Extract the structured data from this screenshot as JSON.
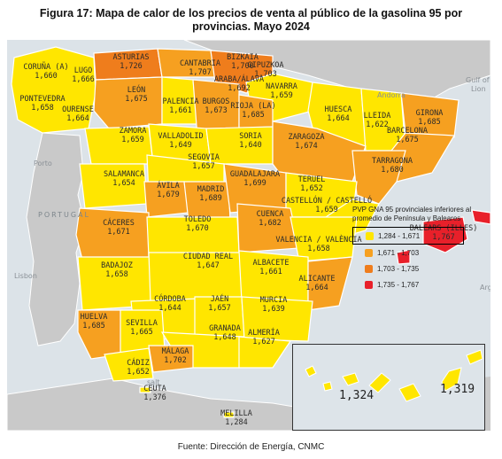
{
  "title": "Figura 17: Mapa de calor de los precios de venta al público de la gasolina 95 por provincias. Mayo 2024",
  "source": "Fuente: Dirección de Energía, CNMC",
  "colors": {
    "sea": "#dce3e8",
    "land": "#c4c4c4",
    "bin1": "#ffe600",
    "bin2": "#f6a020",
    "bin3": "#ef7d1c",
    "bin4": "#e8202a"
  },
  "legend": {
    "title": "PVP GNA 95 provinciales inferiores al promedio de Península y Baleares",
    "items": [
      {
        "label": "1,284 - 1,671",
        "color": "#ffe600"
      },
      {
        "label": "1,671 - 1,703",
        "color": "#f6a020"
      },
      {
        "label": "1,703 - 1,735",
        "color": "#ef7d1c"
      },
      {
        "label": "1,735 - 1,767",
        "color": "#e8202a"
      }
    ]
  },
  "places": {
    "portugal": "PORTUGAL",
    "porto": "Porto",
    "lisbon": "Lisbon",
    "andorra": "Andorra",
    "gulf": "Gulf of",
    "lion": "Lion",
    "argel": "Argel",
    "salt": "salt"
  },
  "provinces": [
    {
      "name": "CORUÑA (A)",
      "value": "1,660"
    },
    {
      "name": "LUGO",
      "value": "1,666"
    },
    {
      "name": "PONTEVEDRA",
      "value": "1,658"
    },
    {
      "name": "OURENSE",
      "value": "1,664"
    },
    {
      "name": "ASTURIAS",
      "value": "1,726"
    },
    {
      "name": "CANTABRIA",
      "value": "1,707"
    },
    {
      "name": "BIZKAIA",
      "value": "1,700"
    },
    {
      "name": "GIPUZKOA",
      "value": "1,703"
    },
    {
      "name": "ARABA/ÁLAVA",
      "value": "1,692"
    },
    {
      "name": "NAVARRA",
      "value": "1,659"
    },
    {
      "name": "LEÓN",
      "value": "1,675"
    },
    {
      "name": "PALENCIA",
      "value": "1,661"
    },
    {
      "name": "BURGOS",
      "value": "1,673"
    },
    {
      "name": "RIOJA (LA)",
      "value": "1,685"
    },
    {
      "name": "HUESCA",
      "value": "1,664"
    },
    {
      "name": "LLEIDA",
      "value": "1,622"
    },
    {
      "name": "GIRONA",
      "value": "1,685"
    },
    {
      "name": "BARCELONA",
      "value": "1,675"
    },
    {
      "name": "ZAMORA",
      "value": "1,659"
    },
    {
      "name": "VALLADOLID",
      "value": "1,649"
    },
    {
      "name": "SORIA",
      "value": "1,640"
    },
    {
      "name": "ZARAGOZA",
      "value": "1,674"
    },
    {
      "name": "TARRAGONA",
      "value": "1,680"
    },
    {
      "name": "SALAMANCA",
      "value": "1,654"
    },
    {
      "name": "SEGOVIA",
      "value": "1,657"
    },
    {
      "name": "ÁVILA",
      "value": "1,679"
    },
    {
      "name": "MADRID",
      "value": "1,689"
    },
    {
      "name": "GUADALAJARA",
      "value": "1,699"
    },
    {
      "name": "TERUEL",
      "value": "1,652"
    },
    {
      "name": "CASTELLÓN / CASTELLÓ",
      "value": "1,659"
    },
    {
      "name": "CÁCERES",
      "value": "1,671"
    },
    {
      "name": "TOLEDO",
      "value": "1,670"
    },
    {
      "name": "CUENCA",
      "value": "1,682"
    },
    {
      "name": "VALENCIA / VALÈNCIA",
      "value": "1,658"
    },
    {
      "name": "BALEARS (ILLES)",
      "value": "1,767"
    },
    {
      "name": "BADAJOZ",
      "value": "1,658"
    },
    {
      "name": "CIUDAD REAL",
      "value": "1,647"
    },
    {
      "name": "ALBACETE",
      "value": "1,661"
    },
    {
      "name": "ALICANTE",
      "value": "1,664"
    },
    {
      "name": "CÓRDOBA",
      "value": "1,644"
    },
    {
      "name": "JAÉN",
      "value": "1,657"
    },
    {
      "name": "MURCIA",
      "value": "1,639"
    },
    {
      "name": "HUELVA",
      "value": "1,685"
    },
    {
      "name": "SEVILLA",
      "value": "1,665"
    },
    {
      "name": "GRANADA",
      "value": "1,648"
    },
    {
      "name": "ALMERÍA",
      "value": "1,627"
    },
    {
      "name": "MÁLAGA",
      "value": "1,702"
    },
    {
      "name": "CÁDIZ",
      "value": "1,652"
    },
    {
      "name": "CEUTA",
      "value": "1,376"
    },
    {
      "name": "MELILLA",
      "value": "1,284"
    }
  ],
  "canarias": {
    "west_value": "1,324",
    "east_value": "1,319"
  }
}
